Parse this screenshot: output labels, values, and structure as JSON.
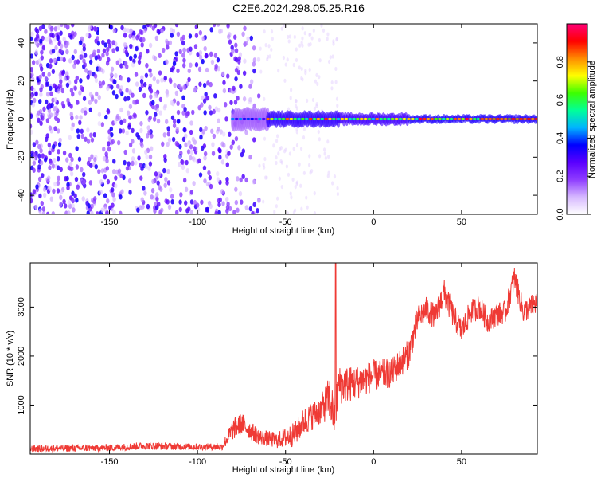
{
  "title": "C2E6.2024.298.05.25.R16",
  "colors": {
    "snr_line": "#ef3a35",
    "trace_core": "#cc1e1e",
    "background": "#ffffff",
    "axis": "#000000",
    "colormap": [
      "#ffffff",
      "#d6b8ff",
      "#8e3cff",
      "#5a00ff",
      "#0000ff",
      "#00b4ff",
      "#00ff9a",
      "#3cff00",
      "#ffff00",
      "#ff8c00",
      "#ff0000",
      "#ff0078"
    ]
  },
  "chart_data": [
    {
      "type": "heatmap",
      "xlabel": "Height of straight line (km)",
      "ylabel": "Frequency (Hz)",
      "xlim": [
        -195,
        93
      ],
      "ylim": [
        -50,
        50
      ],
      "xticks": [
        -150,
        -100,
        -50,
        0,
        50
      ],
      "yticks": [
        -40,
        -20,
        0,
        20,
        40
      ],
      "colorbar": {
        "label": "Normalized spectral amplitude",
        "range": [
          0.0,
          1.0
        ],
        "ticks": [
          "0.0",
          "0.2",
          "0.4",
          "0.6",
          "0.8"
        ]
      },
      "ridge_frequency": 0,
      "ridge_segments": [
        {
          "x_start": -80,
          "x_end": -60,
          "half_width_hz": 6,
          "peak_amplitude": 0.45
        },
        {
          "x_start": -60,
          "x_end": -20,
          "half_width_hz": 4,
          "peak_amplitude": 0.9
        },
        {
          "x_start": -20,
          "x_end": 20,
          "half_width_hz": 3,
          "peak_amplitude": 0.85
        },
        {
          "x_start": 20,
          "x_end": 93,
          "half_width_hz": 2,
          "peak_amplitude": 0.95
        }
      ],
      "scatter_region": {
        "x_start": -195,
        "x_end": -65,
        "amplitude_range": [
          0.05,
          0.35
        ]
      }
    },
    {
      "type": "line",
      "xlabel": "Height of straight line (km)",
      "ylabel": "SNR (10 * v/v)",
      "xlim": [
        -195,
        93
      ],
      "ylim": [
        0,
        3900
      ],
      "xticks": [
        -150,
        -100,
        -50,
        0,
        50
      ],
      "yticks": [
        1000,
        2000,
        3000
      ],
      "series_profile": {
        "x": [
          -195,
          -150,
          -130,
          -100,
          -86,
          -80,
          -75,
          -65,
          -55,
          -45,
          -40,
          -30,
          -25,
          -22,
          -20,
          -10,
          0,
          10,
          20,
          25,
          30,
          35,
          40,
          45,
          50,
          55,
          60,
          65,
          70,
          75,
          80,
          85,
          93
        ],
        "baseline": [
          110,
          130,
          170,
          150,
          150,
          500,
          620,
          350,
          280,
          400,
          650,
          900,
          1150,
          700,
          1400,
          1450,
          1600,
          1650,
          2050,
          2750,
          2950,
          2800,
          3300,
          2850,
          2500,
          2900,
          3000,
          2700,
          2850,
          2900,
          3600,
          2900,
          3100
        ],
        "noise": [
          70,
          70,
          80,
          70,
          70,
          220,
          220,
          160,
          160,
          250,
          280,
          300,
          450,
          450,
          400,
          350,
          320,
          300,
          300,
          280,
          260,
          260,
          280,
          260,
          250,
          250,
          250,
          240,
          240,
          240,
          260,
          240,
          240
        ]
      },
      "spike": {
        "x": -21.5,
        "y": 3900
      }
    }
  ]
}
